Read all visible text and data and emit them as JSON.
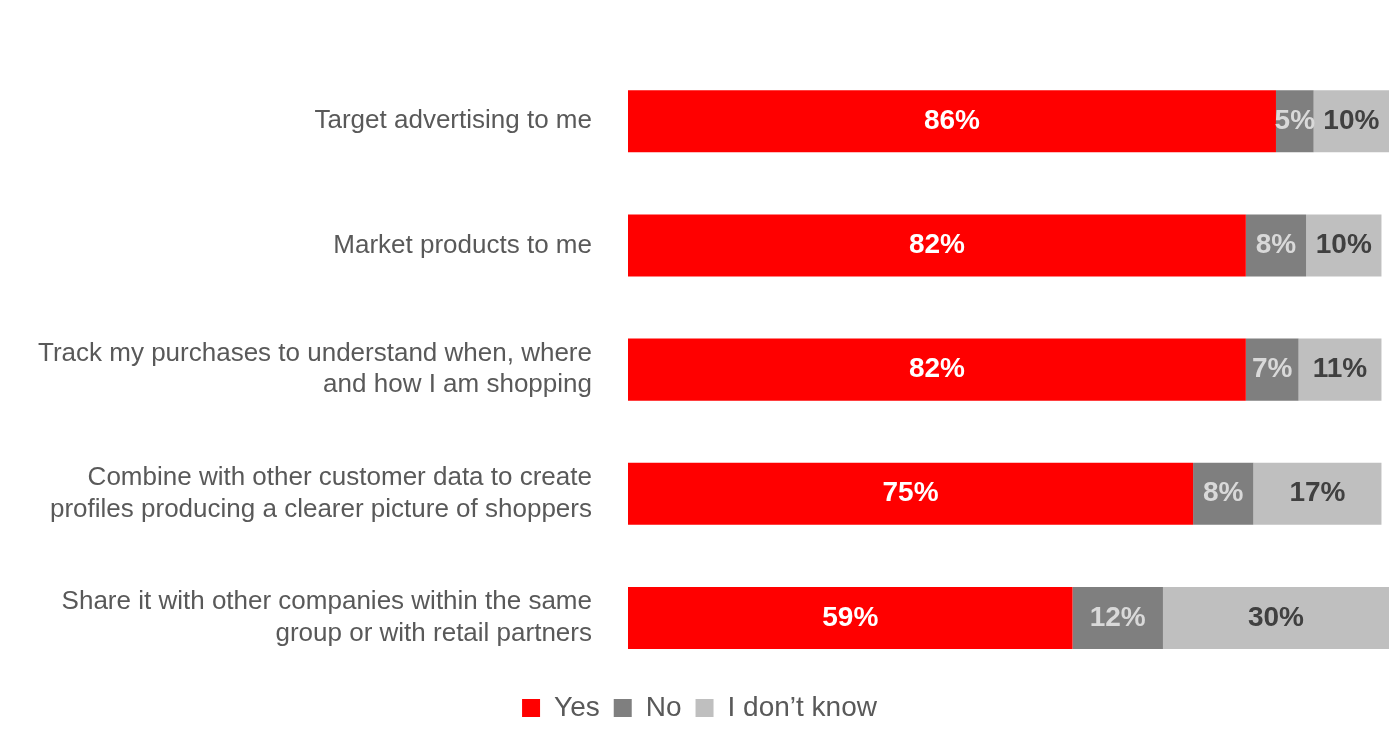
{
  "chart_data": {
    "type": "bar",
    "orientation": "horizontal",
    "stacked": true,
    "legend": "bottom",
    "tick_labels": "y",
    "categories": [
      "Target advertising to me",
      "Market products to me",
      "Track my purchases to understand when, where and how I am shopping",
      "Combine with other customer data to create profiles producing a clearer picture of shoppers",
      "Share it with other companies within the same group or with retail partners"
    ],
    "series": [
      {
        "name": "Yes",
        "color": "#ff0000",
        "values": [
          86,
          82,
          82,
          75,
          59
        ],
        "value_labels": [
          "86%",
          "82%",
          "82%",
          "75%",
          "59%"
        ]
      },
      {
        "name": "No",
        "color": "#7f7f7f",
        "values": [
          5,
          8,
          7,
          8,
          12
        ],
        "value_labels": [
          "5%",
          "8%",
          "7%",
          "8%",
          "12%"
        ]
      },
      {
        "name": "I don’t know",
        "color": "#bfbfbf",
        "values": [
          10,
          10,
          11,
          17,
          30
        ],
        "value_labels": [
          "10%",
          "10%",
          "11%",
          "17%",
          "30%"
        ]
      }
    ]
  }
}
